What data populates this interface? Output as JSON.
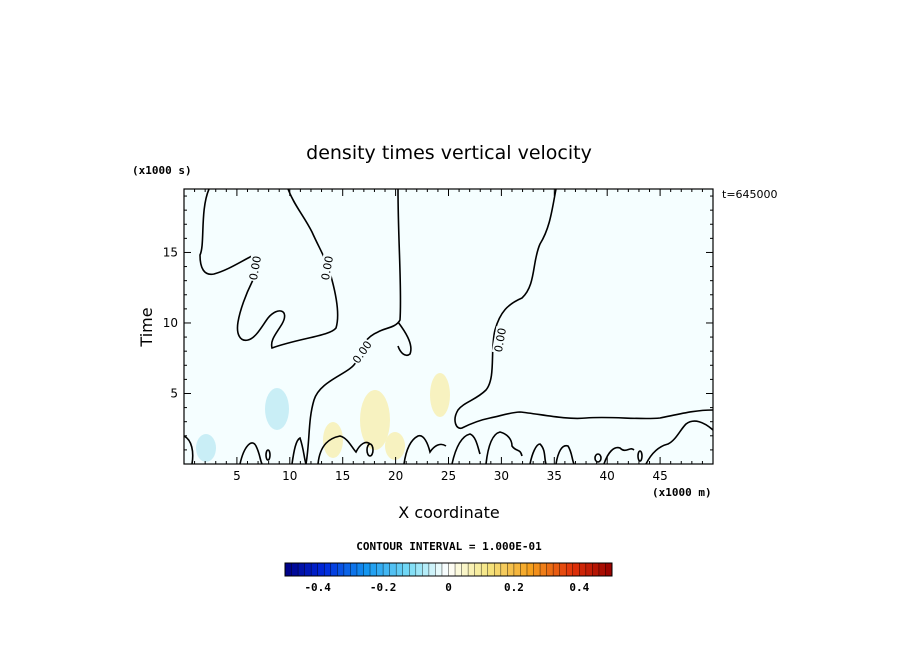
{
  "chart_data": {
    "type": "contour",
    "title": "density times vertical velocity",
    "xlabel": "X coordinate",
    "ylabel": "Time",
    "x_unit": "(x1000 m)",
    "y_unit": "(x1000 s)",
    "time_label": "t=645000",
    "xlim": [
      0,
      50
    ],
    "ylim": [
      0,
      19.5
    ],
    "x_ticks": [
      5,
      10,
      15,
      20,
      25,
      30,
      35,
      40,
      45
    ],
    "y_ticks": [
      5,
      10,
      15
    ],
    "contour_interval_label": "CONTOUR INTERVAL = 1.000E-01",
    "contour_labels": [
      "0.00",
      "0.00",
      "0.00",
      "0.00"
    ],
    "colorbar": {
      "range": [
        -0.5,
        0.5
      ],
      "tick_values": [
        -0.4,
        -0.2,
        0,
        0.2,
        0.4
      ],
      "tick_labels": [
        "-0.4",
        "-0.2",
        "0",
        "0.2",
        "0.4"
      ]
    },
    "colors": {
      "background_field": "#f5feff",
      "negative_weak": "#c9eef6",
      "positive_weak": "#f7f2c0"
    }
  }
}
